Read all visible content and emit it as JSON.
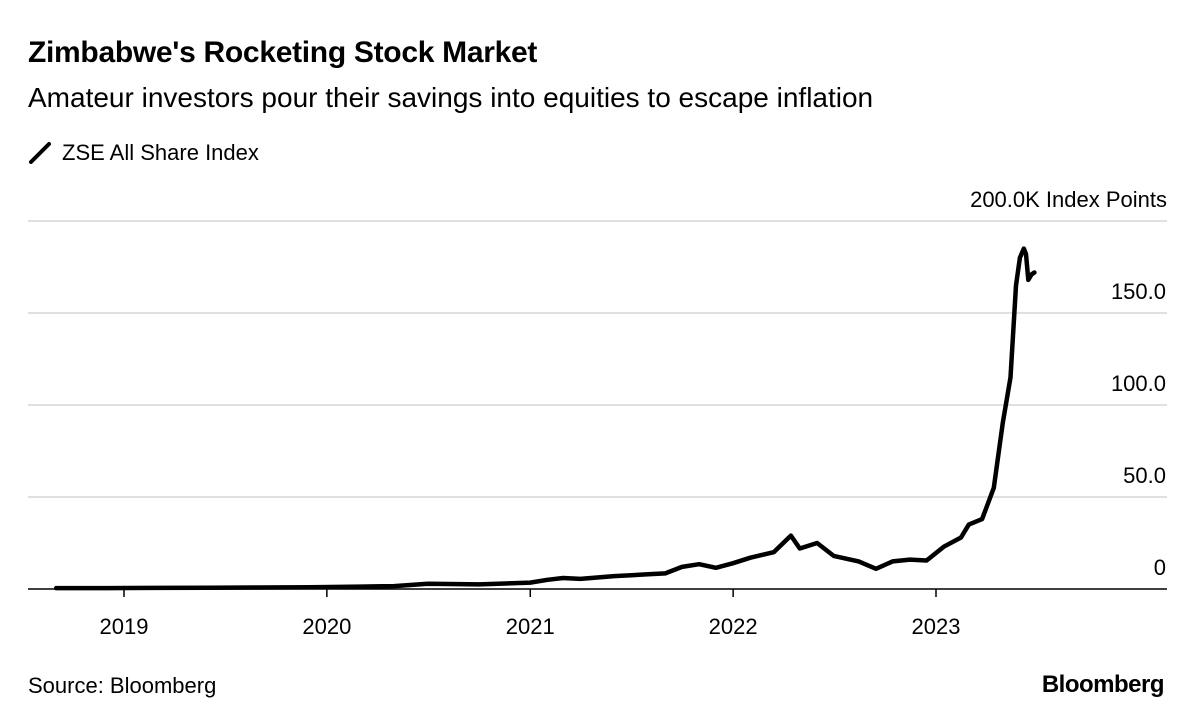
{
  "chart_data": {
    "type": "line",
    "title": "Zimbabwe's Rocketing Stock Market",
    "subtitle": "Amateur investors pour their savings into equities to escape inflation",
    "ylabel": "200.0K Index Points",
    "ylim": [
      0,
      200
    ],
    "y_ticks": [
      "0",
      "50.0",
      "100.0",
      "150.0"
    ],
    "x_ticks": [
      "2019",
      "2020",
      "2021",
      "2022",
      "2023"
    ],
    "grid": true,
    "legend_position": "top-left",
    "series": [
      {
        "name": "ZSE All Share Index",
        "color": "#000000",
        "points": [
          [
            "2018-09-01",
            0.5
          ],
          [
            "2018-12-01",
            0.5
          ],
          [
            "2019-03-01",
            0.6
          ],
          [
            "2019-06-01",
            0.7
          ],
          [
            "2019-09-01",
            0.8
          ],
          [
            "2019-12-01",
            0.9
          ],
          [
            "2020-03-01",
            1.3
          ],
          [
            "2020-05-01",
            1.6
          ],
          [
            "2020-07-01",
            2.8
          ],
          [
            "2020-10-01",
            2.5
          ],
          [
            "2021-01-01",
            3.5
          ],
          [
            "2021-02-01",
            5.0
          ],
          [
            "2021-03-01",
            6.0
          ],
          [
            "2021-04-01",
            5.5
          ],
          [
            "2021-06-01",
            7.0
          ],
          [
            "2021-08-01",
            8.0
          ],
          [
            "2021-09-01",
            8.5
          ],
          [
            "2021-10-01",
            12.0
          ],
          [
            "2021-11-01",
            13.5
          ],
          [
            "2021-12-01",
            11.5
          ],
          [
            "2022-01-01",
            14.0
          ],
          [
            "2022-02-01",
            17.0
          ],
          [
            "2022-03-15",
            20.0
          ],
          [
            "2022-04-15",
            29.0
          ],
          [
            "2022-05-01",
            22.0
          ],
          [
            "2022-06-01",
            25.0
          ],
          [
            "2022-07-01",
            18.0
          ],
          [
            "2022-08-15",
            15.0
          ],
          [
            "2022-09-15",
            11.0
          ],
          [
            "2022-10-15",
            15.0
          ],
          [
            "2022-11-15",
            16.0
          ],
          [
            "2022-12-15",
            15.5
          ],
          [
            "2023-01-15",
            23.0
          ],
          [
            "2023-02-15",
            28.0
          ],
          [
            "2023-03-01",
            35.0
          ],
          [
            "2023-03-25",
            38.0
          ],
          [
            "2023-04-15",
            55.0
          ],
          [
            "2023-05-01",
            90.0
          ],
          [
            "2023-05-15",
            115.0
          ],
          [
            "2023-05-25",
            165.0
          ],
          [
            "2023-06-01",
            180.0
          ],
          [
            "2023-06-08",
            185.0
          ],
          [
            "2023-06-12",
            182.0
          ],
          [
            "2023-06-16",
            168.0
          ],
          [
            "2023-06-22",
            171.0
          ],
          [
            "2023-06-27",
            172.0
          ]
        ]
      }
    ]
  },
  "footer": {
    "source": "Source: Bloomberg",
    "brand": "Bloomberg"
  }
}
